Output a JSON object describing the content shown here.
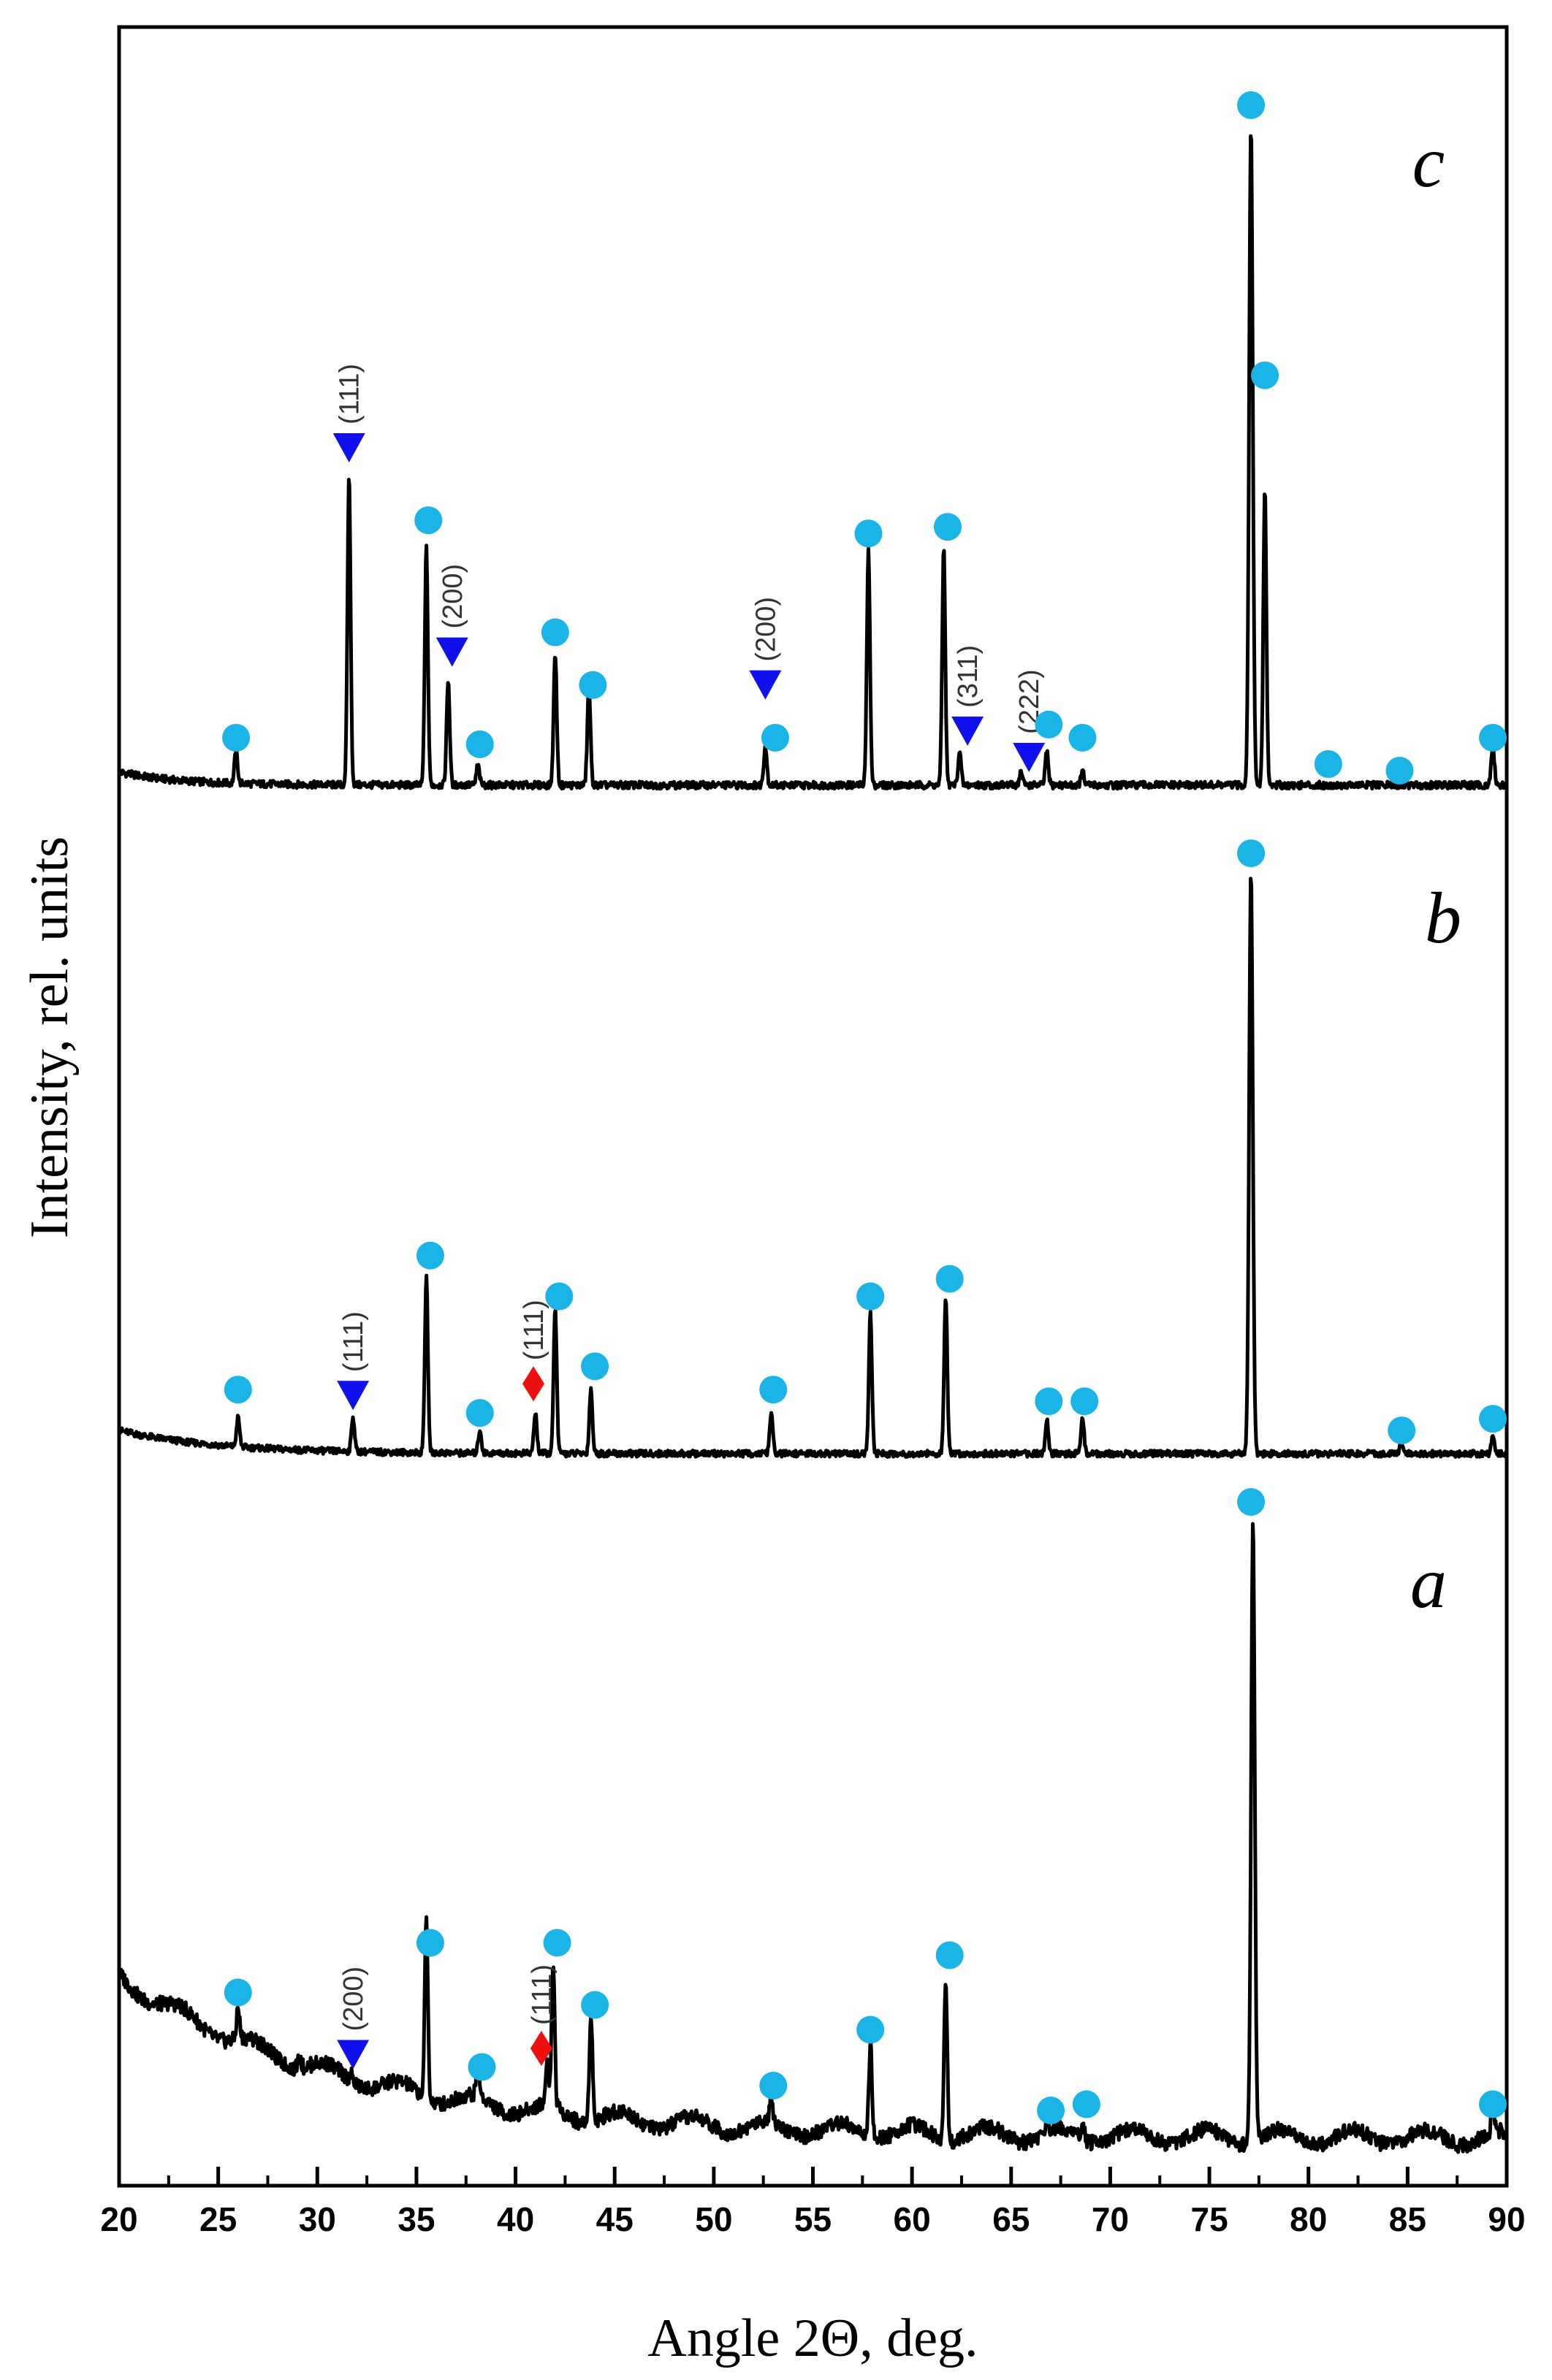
{
  "chart_data": {
    "type": "line",
    "title": "",
    "xlabel": "Angle 2Θ, deg.",
    "ylabel": "Intensity, rel. units",
    "xlim": [
      20,
      90
    ],
    "x_ticks": [
      20,
      25,
      30,
      35,
      40,
      45,
      50,
      55,
      60,
      65,
      70,
      75,
      80,
      85,
      90
    ],
    "y_ticks": [],
    "grid": false,
    "legend": "none",
    "colors": {
      "circle": "#1ab4e6",
      "triangle": "#1010ee",
      "diamond": "#ee1010",
      "line": "#000000",
      "hkl": "#333333"
    },
    "series": [
      {
        "name": "c",
        "baseline": 0,
        "peaks": [
          {
            "x": 25.9,
            "h": 5
          },
          {
            "x": 31.6,
            "h": 47
          },
          {
            "x": 35.5,
            "h": 36
          },
          {
            "x": 36.6,
            "h": 16
          },
          {
            "x": 38.1,
            "h": 3
          },
          {
            "x": 42.0,
            "h": 20
          },
          {
            "x": 43.7,
            "h": 15
          },
          {
            "x": 52.6,
            "h": 6
          },
          {
            "x": 57.8,
            "h": 36
          },
          {
            "x": 61.6,
            "h": 36
          },
          {
            "x": 62.4,
            "h": 5
          },
          {
            "x": 65.5,
            "h": 2
          },
          {
            "x": 66.8,
            "h": 5
          },
          {
            "x": 68.6,
            "h": 2
          },
          {
            "x": 77.1,
            "h": 100
          },
          {
            "x": 77.8,
            "h": 45
          },
          {
            "x": 89.3,
            "h": 6
          }
        ],
        "markers": [
          {
            "type": "circle",
            "x": 25.9,
            "h": 8
          },
          {
            "type": "triangle",
            "x": 31.6,
            "h": 52,
            "hkl": "(111)"
          },
          {
            "type": "circle",
            "x": 35.6,
            "h": 41
          },
          {
            "type": "triangle",
            "x": 36.8,
            "h": 21,
            "hkl": "(200)"
          },
          {
            "type": "circle",
            "x": 38.2,
            "h": 7
          },
          {
            "type": "circle",
            "x": 42.0,
            "h": 24
          },
          {
            "type": "circle",
            "x": 43.9,
            "h": 16
          },
          {
            "type": "triangle",
            "x": 52.6,
            "h": 16,
            "hkl": "(200)"
          },
          {
            "type": "circle",
            "x": 53.1,
            "h": 8
          },
          {
            "type": "circle",
            "x": 57.8,
            "h": 39
          },
          {
            "type": "circle",
            "x": 61.8,
            "h": 40
          },
          {
            "type": "triangle",
            "x": 62.8,
            "h": 9,
            "hkl": "(311)"
          },
          {
            "type": "triangle",
            "x": 65.9,
            "h": 5,
            "hkl": "(222)"
          },
          {
            "type": "circle",
            "x": 66.9,
            "h": 10
          },
          {
            "type": "circle",
            "x": 68.6,
            "h": 8
          },
          {
            "type": "circle",
            "x": 77.1,
            "h": 104
          },
          {
            "type": "circle",
            "x": 77.8,
            "h": 63
          },
          {
            "type": "circle",
            "x": 81.0,
            "h": 4
          },
          {
            "type": "circle",
            "x": 84.6,
            "h": 3
          },
          {
            "type": "circle",
            "x": 89.3,
            "h": 8
          }
        ]
      },
      {
        "name": "b",
        "baseline": 0,
        "peaks": [
          {
            "x": 26.0,
            "h": 5
          },
          {
            "x": 31.8,
            "h": 6
          },
          {
            "x": 35.5,
            "h": 30
          },
          {
            "x": 38.2,
            "h": 4
          },
          {
            "x": 41.0,
            "h": 7
          },
          {
            "x": 42.0,
            "h": 25
          },
          {
            "x": 43.8,
            "h": 11
          },
          {
            "x": 52.9,
            "h": 7
          },
          {
            "x": 57.9,
            "h": 24
          },
          {
            "x": 61.7,
            "h": 27
          },
          {
            "x": 66.8,
            "h": 6
          },
          {
            "x": 68.6,
            "h": 6
          },
          {
            "x": 77.1,
            "h": 100
          },
          {
            "x": 84.7,
            "h": 2
          },
          {
            "x": 89.3,
            "h": 3
          }
        ],
        "markers": [
          {
            "type": "circle",
            "x": 26.0,
            "h": 12
          },
          {
            "type": "triangle",
            "x": 31.8,
            "h": 11,
            "hkl": "(111)"
          },
          {
            "type": "circle",
            "x": 35.7,
            "h": 35
          },
          {
            "type": "circle",
            "x": 38.2,
            "h": 8
          },
          {
            "type": "diamond",
            "x": 40.9,
            "h": 13,
            "hkl": "(111)"
          },
          {
            "type": "circle",
            "x": 42.2,
            "h": 28
          },
          {
            "type": "circle",
            "x": 44.0,
            "h": 16
          },
          {
            "type": "circle",
            "x": 53.0,
            "h": 12
          },
          {
            "type": "circle",
            "x": 57.9,
            "h": 28
          },
          {
            "type": "circle",
            "x": 61.9,
            "h": 31
          },
          {
            "type": "circle",
            "x": 66.9,
            "h": 10
          },
          {
            "type": "circle",
            "x": 68.7,
            "h": 10
          },
          {
            "type": "circle",
            "x": 77.1,
            "h": 104
          },
          {
            "type": "circle",
            "x": 84.7,
            "h": 5
          },
          {
            "type": "circle",
            "x": 89.3,
            "h": 7
          }
        ]
      },
      {
        "name": "a",
        "baseline": 0,
        "peaks": [
          {
            "x": 26.0,
            "h": 5
          },
          {
            "x": 29.1,
            "h": 2
          },
          {
            "x": 31.7,
            "h": 1
          },
          {
            "x": 35.5,
            "h": 29
          },
          {
            "x": 38.1,
            "h": 6
          },
          {
            "x": 41.6,
            "h": 7
          },
          {
            "x": 41.9,
            "h": 23
          },
          {
            "x": 43.8,
            "h": 18
          },
          {
            "x": 52.9,
            "h": 4
          },
          {
            "x": 57.9,
            "h": 15
          },
          {
            "x": 61.7,
            "h": 26
          },
          {
            "x": 66.8,
            "h": 2
          },
          {
            "x": 68.6,
            "h": 3
          },
          {
            "x": 77.2,
            "h": 100
          },
          {
            "x": 89.3,
            "h": 4
          }
        ],
        "markers": [
          {
            "type": "circle",
            "x": 26.0,
            "h": 25
          },
          {
            "type": "triangle",
            "x": 31.8,
            "h": 15,
            "hkl": "(200)"
          },
          {
            "type": "circle",
            "x": 35.7,
            "h": 33
          },
          {
            "type": "circle",
            "x": 38.3,
            "h": 13
          },
          {
            "type": "diamond",
            "x": 41.3,
            "h": 16,
            "hkl": "(111)"
          },
          {
            "type": "circle",
            "x": 42.1,
            "h": 33
          },
          {
            "type": "circle",
            "x": 44.0,
            "h": 23
          },
          {
            "type": "circle",
            "x": 53.0,
            "h": 10
          },
          {
            "type": "circle",
            "x": 57.9,
            "h": 19
          },
          {
            "type": "circle",
            "x": 61.9,
            "h": 31
          },
          {
            "type": "circle",
            "x": 67.0,
            "h": 6
          },
          {
            "type": "circle",
            "x": 68.8,
            "h": 7
          },
          {
            "type": "circle",
            "x": 77.1,
            "h": 104
          },
          {
            "type": "circle",
            "x": 89.3,
            "h": 7
          }
        ]
      }
    ]
  }
}
